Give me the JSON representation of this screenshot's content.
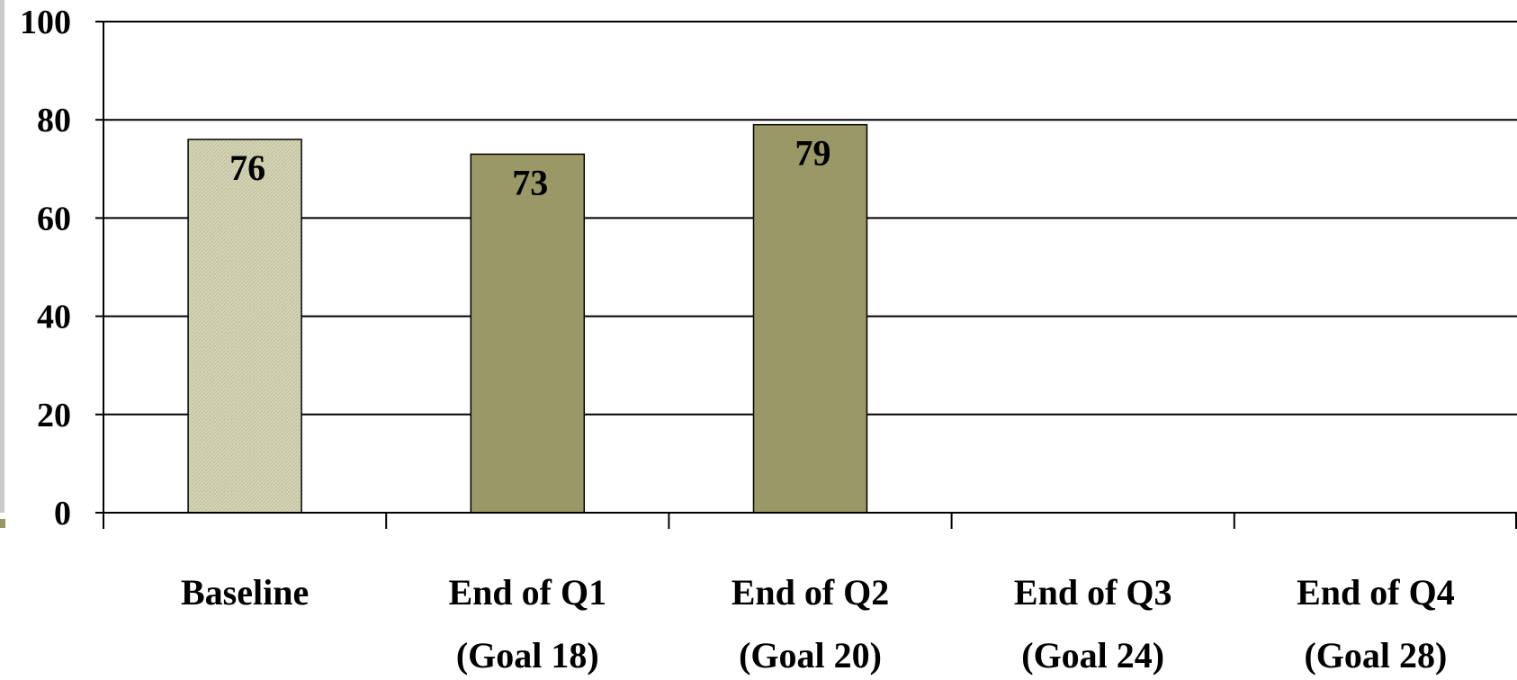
{
  "chart_data": {
    "type": "bar",
    "categories": [
      [
        "Baseline"
      ],
      [
        "End of Q1",
        "(Goal 18)"
      ],
      [
        "End of Q2",
        "(Goal 20)"
      ],
      [
        "End of Q3",
        "(Goal 24)"
      ],
      [
        "End of Q4",
        "(Goal 28)"
      ]
    ],
    "values": [
      76,
      73,
      79,
      null,
      null
    ],
    "data_labels": [
      "76",
      "73",
      "79",
      "",
      ""
    ],
    "ylim": [
      0,
      100
    ],
    "yticks": [
      0,
      20,
      40,
      60,
      80,
      100
    ],
    "grid": true,
    "colors": [
      "#d4d3b4",
      "#9a9866",
      "#9a9866"
    ],
    "title": "",
    "xlabel": "",
    "ylabel": ""
  },
  "decor": {
    "left_strip_color": "#c9c9c9",
    "accent_color": "#9a9866"
  }
}
